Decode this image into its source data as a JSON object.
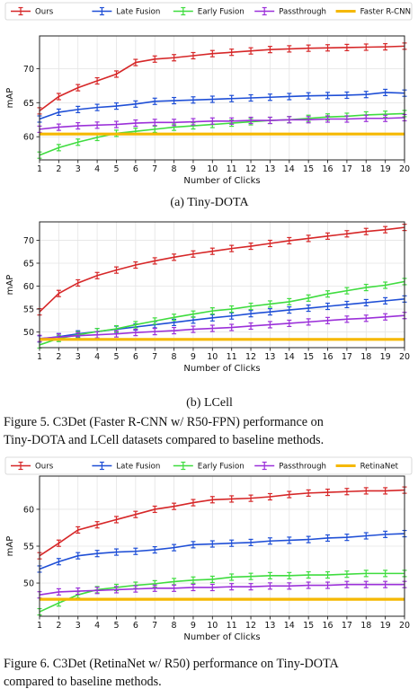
{
  "colors": {
    "ours": "#d62728",
    "late_fusion": "#1f4fd6",
    "early_fusion": "#3fdc3f",
    "passthrough": "#9b30d9",
    "baseline": "#f5b800"
  },
  "captions": {
    "sub_a": "(a) Tiny-DOTA",
    "sub_b": "(b) LCell",
    "fig5_line1": "Figure 5.  C3Det (Faster R-CNN w/ R50-FPN) performance on",
    "fig5_line2": "Tiny-DOTA and LCell datasets compared to baseline methods.",
    "fig6_line1": "Figure 6.  C3Det (RetinaNet w/ R50) performance on Tiny-DOTA",
    "fig6_line2": "compared to baseline methods."
  },
  "chart_data": [
    {
      "type": "line",
      "title": "",
      "xlabel": "Number of Clicks",
      "ylabel": "mAP",
      "x": [
        1,
        2,
        3,
        4,
        5,
        6,
        7,
        8,
        9,
        10,
        11,
        12,
        13,
        14,
        15,
        16,
        17,
        18,
        19,
        20
      ],
      "xlim": [
        1,
        20
      ],
      "ylim": [
        56.6,
        74.8
      ],
      "yticks": [
        60,
        65,
        70
      ],
      "grid": true,
      "legend_position": "top",
      "series": [
        {
          "name": "Ours",
          "color_key": "ours",
          "values": [
            63.8,
            65.9,
            67.2,
            68.2,
            69.2,
            70.9,
            71.4,
            71.6,
            71.9,
            72.2,
            72.4,
            72.6,
            72.8,
            72.9,
            73.0,
            73.05,
            73.1,
            73.15,
            73.2,
            73.3
          ]
        },
        {
          "name": "Late Fusion",
          "color_key": "late_fusion",
          "values": [
            62.6,
            63.6,
            64.0,
            64.3,
            64.5,
            64.8,
            65.2,
            65.3,
            65.4,
            65.5,
            65.6,
            65.7,
            65.8,
            65.9,
            66.0,
            66.05,
            66.1,
            66.2,
            66.5,
            66.4
          ]
        },
        {
          "name": "Early Fusion",
          "color_key": "early_fusion",
          "values": [
            57.3,
            58.4,
            59.2,
            59.9,
            60.5,
            60.8,
            61.1,
            61.4,
            61.6,
            61.8,
            62.0,
            62.2,
            62.4,
            62.5,
            62.7,
            62.9,
            63.0,
            63.2,
            63.3,
            63.4
          ]
        },
        {
          "name": "Passthrough",
          "color_key": "passthrough",
          "values": [
            61.1,
            61.4,
            61.6,
            61.7,
            61.8,
            62.0,
            62.1,
            62.1,
            62.2,
            62.3,
            62.3,
            62.4,
            62.4,
            62.5,
            62.5,
            62.6,
            62.6,
            62.7,
            62.7,
            62.8
          ]
        },
        {
          "name": "Faster R-CNN",
          "color_key": "baseline",
          "values": [
            60.4,
            60.4,
            60.4,
            60.4,
            60.4,
            60.4,
            60.4,
            60.4,
            60.4,
            60.4,
            60.4,
            60.4,
            60.4,
            60.4,
            60.4,
            60.4,
            60.4,
            60.4,
            60.4,
            60.4
          ],
          "baseline": true
        }
      ]
    },
    {
      "type": "line",
      "title": "",
      "xlabel": "Number of Clicks",
      "ylabel": "mAP",
      "x": [
        1,
        2,
        3,
        4,
        5,
        6,
        7,
        8,
        9,
        10,
        11,
        12,
        13,
        14,
        15,
        16,
        17,
        18,
        19,
        20
      ],
      "xlim": [
        1,
        20
      ],
      "ylim": [
        46.6,
        74.0
      ],
      "yticks": [
        50,
        55,
        60,
        65,
        70
      ],
      "grid": true,
      "legend_position": "none",
      "series": [
        {
          "name": "Ours",
          "color_key": "ours",
          "values": [
            54.4,
            58.4,
            60.7,
            62.3,
            63.5,
            64.6,
            65.5,
            66.3,
            67.0,
            67.6,
            68.2,
            68.7,
            69.3,
            69.9,
            70.4,
            70.9,
            71.4,
            71.9,
            72.3,
            72.8
          ]
        },
        {
          "name": "Late Fusion",
          "color_key": "late_fusion",
          "values": [
            48.5,
            49.0,
            49.6,
            50.1,
            50.6,
            51.1,
            51.6,
            52.1,
            52.6,
            53.1,
            53.5,
            54.0,
            54.4,
            54.8,
            55.2,
            55.6,
            56.0,
            56.4,
            56.8,
            57.2
          ]
        },
        {
          "name": "Early Fusion",
          "color_key": "early_fusion",
          "values": [
            47.2,
            48.6,
            49.4,
            50.1,
            50.7,
            51.6,
            52.4,
            53.2,
            53.9,
            54.6,
            55.0,
            55.6,
            56.1,
            56.6,
            57.4,
            58.3,
            59.0,
            59.7,
            60.2,
            61.0
          ]
        },
        {
          "name": "Passthrough",
          "color_key": "passthrough",
          "values": [
            48.6,
            48.9,
            49.2,
            49.4,
            49.6,
            49.9,
            50.1,
            50.3,
            50.6,
            50.8,
            51.0,
            51.3,
            51.6,
            51.9,
            52.2,
            52.5,
            52.8,
            53.0,
            53.3,
            53.6
          ]
        },
        {
          "name": "Faster R-CNN",
          "color_key": "baseline",
          "values": [
            48.4,
            48.4,
            48.4,
            48.4,
            48.4,
            48.4,
            48.4,
            48.4,
            48.4,
            48.4,
            48.4,
            48.4,
            48.4,
            48.4,
            48.4,
            48.4,
            48.4,
            48.4,
            48.4,
            48.4
          ],
          "baseline": true
        }
      ]
    },
    {
      "type": "line",
      "title": "",
      "xlabel": "Number of Clicks",
      "ylabel": "mAP",
      "x": [
        1,
        2,
        3,
        4,
        5,
        6,
        7,
        8,
        9,
        10,
        11,
        12,
        13,
        14,
        15,
        16,
        17,
        18,
        19,
        20
      ],
      "xlim": [
        1,
        20
      ],
      "ylim": [
        45.5,
        64.5
      ],
      "yticks": [
        50,
        55,
        60
      ],
      "grid": true,
      "legend_position": "top",
      "series": [
        {
          "name": "Ours",
          "color_key": "ours",
          "values": [
            53.7,
            55.4,
            57.2,
            57.9,
            58.6,
            59.3,
            60.0,
            60.4,
            60.9,
            61.3,
            61.4,
            61.5,
            61.7,
            62.0,
            62.2,
            62.3,
            62.4,
            62.5,
            62.5,
            62.6
          ]
        },
        {
          "name": "Late Fusion",
          "color_key": "late_fusion",
          "values": [
            51.9,
            52.9,
            53.7,
            54.0,
            54.2,
            54.3,
            54.5,
            54.8,
            55.2,
            55.3,
            55.4,
            55.5,
            55.7,
            55.8,
            55.9,
            56.1,
            56.2,
            56.4,
            56.6,
            56.7
          ]
        },
        {
          "name": "Early Fusion",
          "color_key": "early_fusion",
          "values": [
            46.1,
            47.3,
            48.4,
            49.1,
            49.4,
            49.7,
            49.9,
            50.2,
            50.4,
            50.5,
            50.8,
            50.9,
            51.0,
            51.0,
            51.1,
            51.1,
            51.2,
            51.3,
            51.3,
            51.3
          ]
        },
        {
          "name": "Passthrough",
          "color_key": "passthrough",
          "values": [
            48.4,
            48.8,
            48.9,
            49.0,
            49.1,
            49.2,
            49.3,
            49.3,
            49.4,
            49.4,
            49.5,
            49.5,
            49.6,
            49.6,
            49.7,
            49.7,
            49.8,
            49.8,
            49.8,
            49.8
          ]
        },
        {
          "name": "RetinaNet",
          "color_key": "baseline",
          "values": [
            47.8,
            47.8,
            47.8,
            47.8,
            47.8,
            47.8,
            47.8,
            47.8,
            47.8,
            47.8,
            47.8,
            47.8,
            47.8,
            47.8,
            47.8,
            47.8,
            47.8,
            47.8,
            47.8,
            47.8
          ],
          "baseline": true
        }
      ]
    }
  ]
}
